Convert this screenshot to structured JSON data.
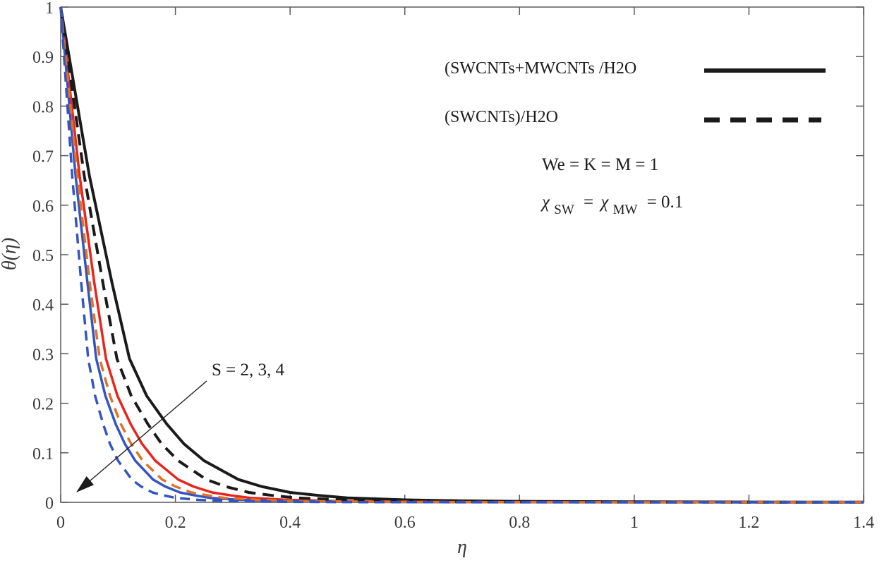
{
  "figure": {
    "xlabel": "η",
    "ylabel": "θ(η)",
    "x_tick_labels": [
      "0",
      "0.2",
      "0.4",
      "0.6",
      "0.8",
      "1",
      "1.2",
      "1.4"
    ],
    "y_tick_labels": [
      "0",
      "0.1",
      "0.2",
      "0.3",
      "0.4",
      "0.5",
      "0.6",
      "0.7",
      "0.8",
      "0.9",
      "1"
    ]
  },
  "legend": {
    "entries": [
      {
        "label": "(SWCNTs+MWCNTs /H2O",
        "line_style": "solid",
        "color": "#1a1a1a"
      },
      {
        "label": "(SWCNTs)/H2O",
        "line_style": "dashed",
        "color": "#1a1a1a"
      }
    ]
  },
  "annotations": {
    "params_line": "We = K = M = 1",
    "chi_line": {
      "chi1": "χ",
      "sub1": "SW",
      "eq1": "=",
      "chi2": "χ",
      "sub2": "MW",
      "eq2": "= 0.1"
    },
    "s_label": "S = 2, 3, 4"
  },
  "colors": {
    "black": "#1a1a1a",
    "red": "#e8241c",
    "blue": "#3355c2",
    "orange": "#df7226",
    "axis": "#5a5a5a",
    "tick_text": "#3a3a3a"
  },
  "chart_data": {
    "type": "line",
    "title": "",
    "xlabel": "η",
    "ylabel": "θ(η)",
    "xlim": [
      0,
      1.4
    ],
    "ylim": [
      0,
      1
    ],
    "grid": false,
    "legend_position": "upper-right-inside-no-box",
    "annotation_arrow": "S = 2, 3, 4 pointing toward decreasing curves (lower-left)",
    "series": [
      {
        "name": "(SWCNTs+MWCNTs)/H2O, S = 2",
        "style": "solid",
        "color": "#1a1a1a",
        "width": 4,
        "x": [
          0,
          0.05,
          0.09,
          0.12,
          0.15,
          0.185,
          0.215,
          0.25,
          0.31,
          0.35,
          0.4,
          0.45,
          0.5,
          0.6,
          0.7,
          0.8,
          1.0,
          1.2,
          1.4
        ],
        "y": [
          1,
          0.66,
          0.44,
          0.29,
          0.215,
          0.158,
          0.118,
          0.084,
          0.046,
          0.032,
          0.02,
          0.014,
          0.009,
          0.005,
          0.003,
          0.002,
          0.001,
          0.0005,
          0.0003
        ]
      },
      {
        "name": "(SWCNTs+MWCNTs)/H2O, S = 3",
        "style": "solid",
        "color": "#e8241c",
        "width": 3.5,
        "x": [
          0,
          0.033,
          0.059,
          0.079,
          0.099,
          0.122,
          0.142,
          0.165,
          0.205,
          0.231,
          0.264,
          0.297,
          0.33,
          0.396,
          0.462,
          0.528,
          0.66,
          0.792,
          0.924,
          1.4
        ],
        "y": [
          1,
          0.66,
          0.44,
          0.29,
          0.215,
          0.158,
          0.118,
          0.084,
          0.046,
          0.032,
          0.02,
          0.014,
          0.009,
          0.005,
          0.003,
          0.002,
          0.001,
          0.0005,
          0.0003,
          0.0002
        ]
      },
      {
        "name": "(SWCNTs+MWCNTs)/H2O, S = 4",
        "style": "solid",
        "color": "#3355c2",
        "width": 3.5,
        "x": [
          0,
          0.026,
          0.047,
          0.062,
          0.078,
          0.096,
          0.112,
          0.13,
          0.161,
          0.182,
          0.208,
          0.234,
          0.26,
          0.312,
          0.364,
          0.416,
          0.52,
          0.624,
          0.728,
          1.4
        ],
        "y": [
          1,
          0.66,
          0.44,
          0.29,
          0.215,
          0.158,
          0.118,
          0.084,
          0.046,
          0.032,
          0.02,
          0.014,
          0.009,
          0.005,
          0.003,
          0.002,
          0.001,
          0.0005,
          0.0003,
          0.0002
        ]
      },
      {
        "name": "(SWCNTs)/H2O, S = 2",
        "style": "dashed",
        "color": "#1a1a1a",
        "width": 4,
        "dash": "16 10",
        "x": [
          0,
          0.041,
          0.074,
          0.098,
          0.123,
          0.152,
          0.176,
          0.205,
          0.254,
          0.287,
          0.328,
          0.369,
          0.41,
          0.492,
          0.574,
          0.656,
          0.82,
          0.984,
          1.148,
          1.4
        ],
        "y": [
          1,
          0.66,
          0.44,
          0.29,
          0.215,
          0.158,
          0.118,
          0.084,
          0.046,
          0.032,
          0.02,
          0.014,
          0.009,
          0.005,
          0.003,
          0.002,
          0.001,
          0.0005,
          0.0003,
          0.0002
        ]
      },
      {
        "name": "(SWCNTs)/H2O, S = 3",
        "style": "dashed",
        "color": "#df7226",
        "width": 3.5,
        "dash": "14 9",
        "x": [
          0,
          0.029,
          0.051,
          0.068,
          0.086,
          0.105,
          0.123,
          0.143,
          0.177,
          0.2,
          0.228,
          0.257,
          0.285,
          0.342,
          0.399,
          0.456,
          0.57,
          0.684,
          0.798,
          1.4
        ],
        "y": [
          1,
          0.66,
          0.44,
          0.29,
          0.215,
          0.158,
          0.118,
          0.084,
          0.046,
          0.032,
          0.02,
          0.014,
          0.009,
          0.005,
          0.003,
          0.002,
          0.001,
          0.0005,
          0.0003,
          0.0002
        ]
      },
      {
        "name": "(SWCNTs)/H2O, S = 4",
        "style": "dashed",
        "color": "#3355c2",
        "width": 3.5,
        "dash": "14 9",
        "x": [
          0,
          0.02,
          0.036,
          0.048,
          0.06,
          0.074,
          0.086,
          0.1,
          0.124,
          0.14,
          0.16,
          0.18,
          0.2,
          0.24,
          0.28,
          0.32,
          0.4,
          0.48,
          0.56,
          1.4
        ],
        "y": [
          1,
          0.66,
          0.44,
          0.29,
          0.215,
          0.158,
          0.118,
          0.084,
          0.046,
          0.032,
          0.02,
          0.014,
          0.009,
          0.005,
          0.003,
          0.002,
          0.001,
          0.0005,
          0.0003,
          0.0002
        ]
      }
    ]
  }
}
